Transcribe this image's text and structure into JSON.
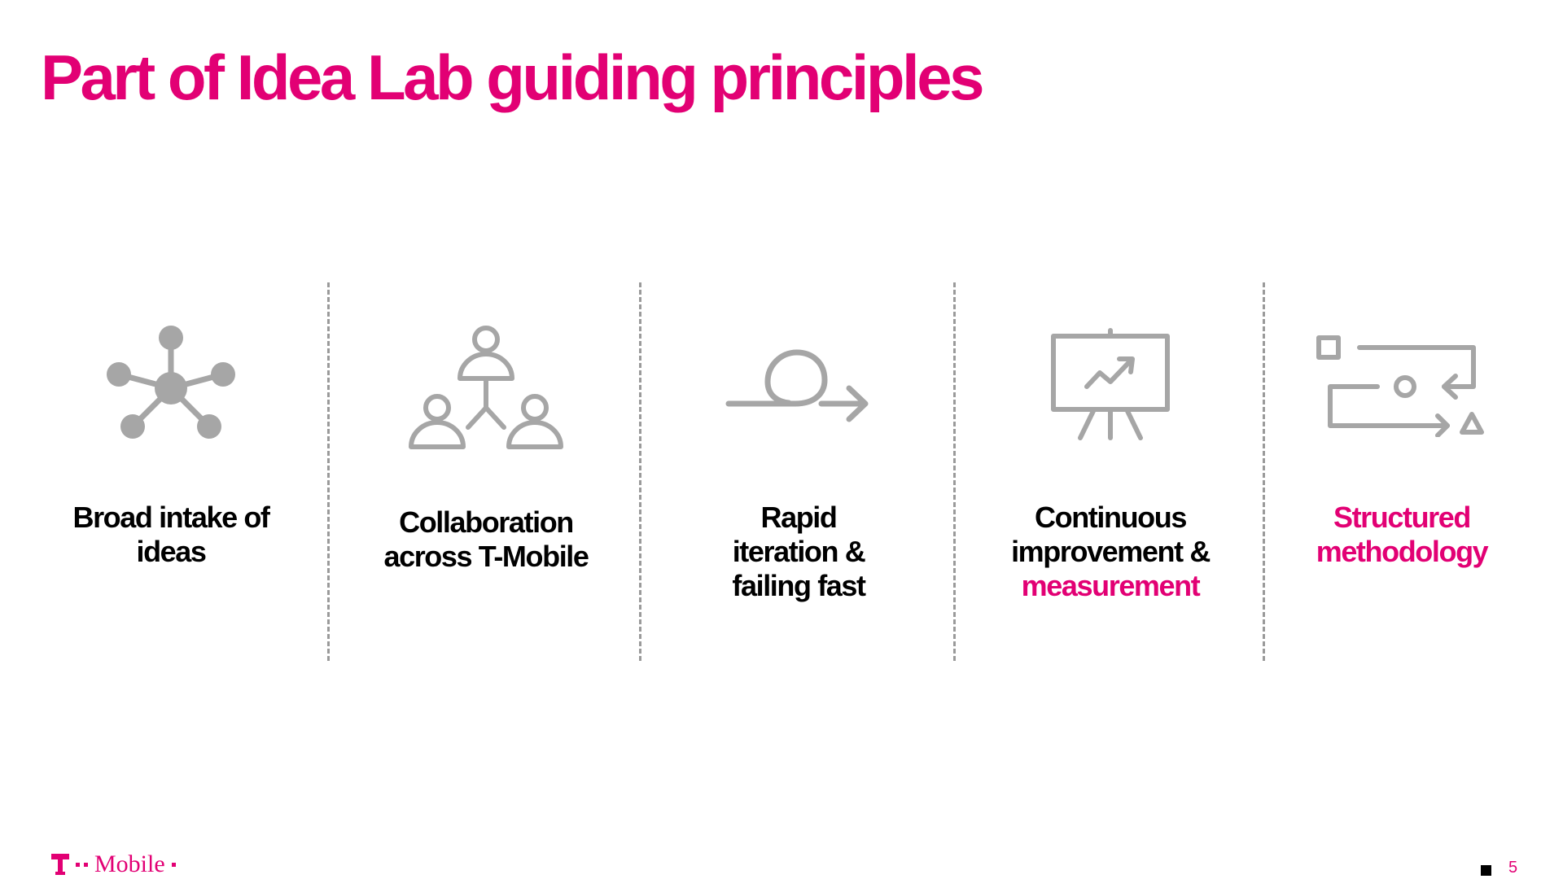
{
  "slide": {
    "title": "Part of Idea Lab guiding principles",
    "accent_color": "#e20074",
    "icon_color": "#a6a6a6",
    "page_number": "5"
  },
  "principles": [
    {
      "icon": "network-hub-icon",
      "lines": [
        "Broad intake of",
        "ideas"
      ],
      "highlight": false
    },
    {
      "icon": "team-collaboration-icon",
      "lines": [
        "Collaboration",
        "across T-Mobile"
      ],
      "highlight": false
    },
    {
      "icon": "loop-arrow-icon",
      "lines": [
        "Rapid",
        "iteration &",
        "failing fast"
      ],
      "highlight": false
    },
    {
      "icon": "presentation-chart-icon",
      "lines": [
        "Continuous",
        "improvement &"
      ],
      "accent_line": "measurement"
    },
    {
      "icon": "process-flow-icon",
      "lines": [
        "Structured",
        "methodology"
      ],
      "highlight": true
    }
  ],
  "footer": {
    "logo_text": "Mobile"
  }
}
